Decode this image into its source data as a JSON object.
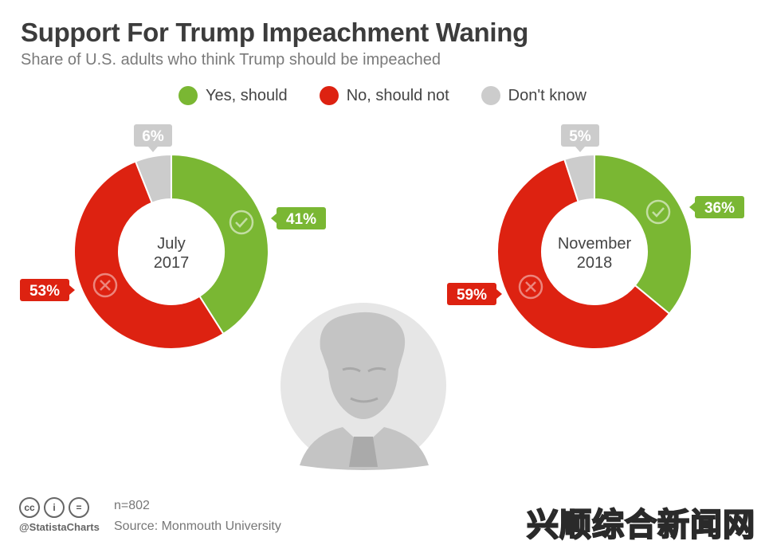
{
  "chart_data": {
    "type": "pie",
    "title": "Support For Trump Impeachment Waning",
    "subtitle": "Share of U.S. adults who think Trump should be impeached",
    "legend": [
      {
        "label": "Yes, should",
        "color": "#7ab733"
      },
      {
        "label": "No, should not",
        "color": "#dd2211"
      },
      {
        "label": "Don't know",
        "color": "#cccccc"
      }
    ],
    "charts": [
      {
        "center_line1": "July",
        "center_line2": "2017",
        "slices": [
          {
            "name": "Yes, should",
            "value": 41,
            "label": "41%"
          },
          {
            "name": "No, should not",
            "value": 53,
            "label": "53%"
          },
          {
            "name": "Don't know",
            "value": 6,
            "label": "6%"
          }
        ]
      },
      {
        "center_line1": "November",
        "center_line2": "2018",
        "slices": [
          {
            "name": "Yes, should",
            "value": 36,
            "label": "36%"
          },
          {
            "name": "No, should not",
            "value": 59,
            "label": "59%"
          },
          {
            "name": "Don't know",
            "value": 5,
            "label": "5%"
          }
        ]
      }
    ]
  },
  "footer": {
    "note": "n=802",
    "source": "Source: Monmouth University",
    "handle": "@StatistaCharts",
    "icon_cc": "cc",
    "icon_by": "i",
    "icon_nd": "="
  },
  "watermark": "兴顺综合新闻网",
  "colors": {
    "yes": "#7ab733",
    "no": "#dd2211",
    "dk": "#cccccc",
    "portrait_bg": "#e6e6e6",
    "portrait_fg": "#c4c4c4"
  },
  "icons": [
    "check-icon",
    "cross-icon",
    "cc-icon",
    "attribution-icon",
    "no-derivatives-icon",
    "trump-portrait"
  ]
}
